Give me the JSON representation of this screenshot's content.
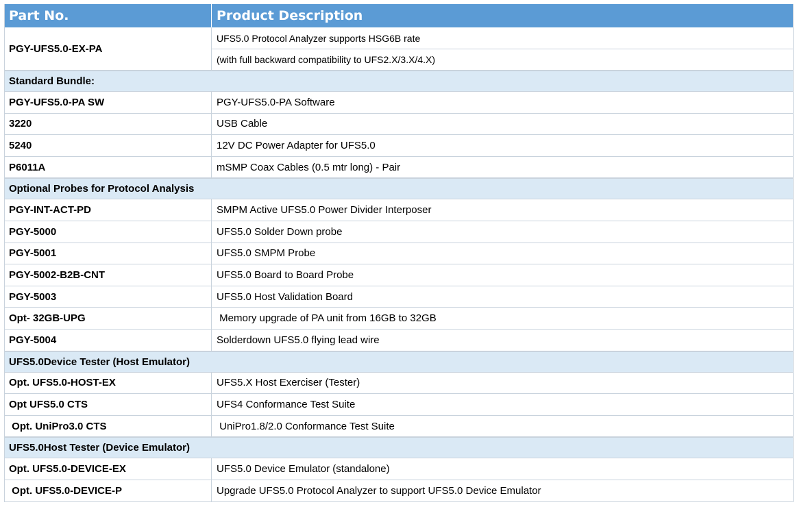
{
  "table": {
    "header": {
      "part_no": "Part No.",
      "product_description": "Product Description"
    },
    "main_item": {
      "part_no": "PGY-UFS5.0-EX-PA",
      "description_line1": "UFS5.0 Protocol Analyzer supports HSG6B rate",
      "description_line2": "(with full backward compatibility to UFS2.X/3.X/4.X)"
    },
    "sections": [
      {
        "title": "Standard Bundle:",
        "items": [
          {
            "part_no": "PGY-UFS5.0-PA SW",
            "description": "PGY-UFS5.0-PA Software"
          },
          {
            "part_no": "3220",
            "description": "USB Cable"
          },
          {
            "part_no": "5240",
            "description": "12V DC Power Adapter for UFS5.0"
          },
          {
            "part_no": "P6011A",
            "description": "mSMP Coax Cables (0.5 mtr long) - Pair"
          }
        ]
      },
      {
        "title": "Optional Probes for Protocol Analysis",
        "items": [
          {
            "part_no": "PGY-INT-ACT-PD",
            "description": "SMPM Active UFS5.0 Power Divider Interposer"
          },
          {
            "part_no": "PGY-5000",
            "description": "UFS5.0 Solder Down probe"
          },
          {
            "part_no": "PGY-5001",
            "description": "UFS5.0 SMPM Probe"
          },
          {
            "part_no": "PGY-5002-B2B-CNT",
            "description": "UFS5.0 Board to Board Probe"
          },
          {
            "part_no": "PGY-5003",
            "description": "UFS5.0 Host Validation Board"
          },
          {
            "part_no": "Opt- 32GB-UPG",
            "description": " Memory upgrade of PA unit from 16GB to 32GB"
          },
          {
            "part_no": "PGY-5004",
            "description": "Solderdown UFS5.0 flying lead wire"
          }
        ]
      },
      {
        "title": "UFS5.0Device Tester (Host Emulator)",
        "items": [
          {
            "part_no": "Opt. UFS5.0-HOST-EX",
            "description": "UFS5.X Host Exerciser (Tester)"
          },
          {
            "part_no": "Opt UFS5.0 CTS",
            "description": "UFS4 Conformance Test Suite"
          },
          {
            "part_no": " Opt. UniPro3.0 CTS",
            "description": " UniPro1.8/2.0 Conformance Test Suite"
          }
        ]
      },
      {
        "title": "UFS5.0Host Tester (Device Emulator)",
        "items": [
          {
            "part_no": "Opt. UFS5.0-DEVICE-EX",
            "description": "UFS5.0 Device Emulator (standalone)"
          },
          {
            "part_no": " Opt. UFS5.0-DEVICE-P",
            "description": "Upgrade UFS5.0 Protocol Analyzer to support UFS5.0 Device Emulator"
          }
        ]
      }
    ]
  },
  "colors": {
    "header_bg": "#5b9bd5",
    "section_bg": "#dae9f5",
    "border": "#c9d3dd"
  }
}
